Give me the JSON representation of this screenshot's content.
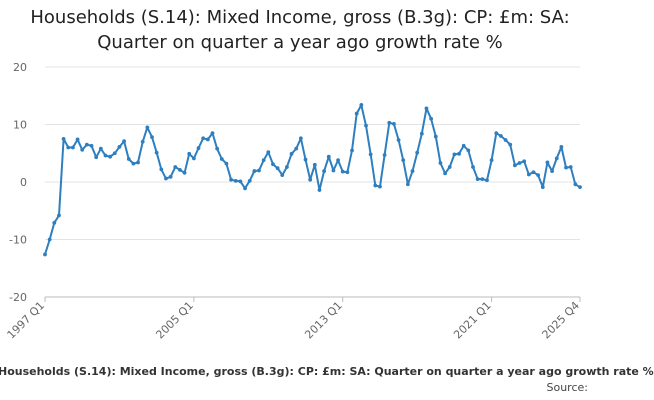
{
  "page": {
    "title_line1": "Households (S.14): Mixed Income, gross (B.3g): CP: £m: SA:",
    "title_line2": "Quarter on quarter a year ago growth rate %",
    "caption": "Households (S.14): Mixed Income, gross (B.3g): CP: £m: SA: Quarter on quarter a year ago growth rate %",
    "source_label": "Source:"
  },
  "colors": {
    "line": "#2e7fc0",
    "grid": "#e3e3e3",
    "axis": "#bbbbbb",
    "tick_text": "#666666"
  },
  "chart_data": {
    "type": "line",
    "title": "Households (S.14): Mixed Income, gross (B.3g): CP: £m: SA: Quarter on quarter a year ago growth rate %",
    "xlabel": "",
    "ylabel": "",
    "ylim": [
      -20,
      20
    ],
    "y_ticks": [
      -20,
      -10,
      0,
      10,
      20
    ],
    "x_ticks": [
      "1997 Q1",
      "2005 Q1",
      "2013 Q1",
      "2021 Q1",
      "2025 Q4"
    ],
    "grid": true,
    "legend": "none",
    "x_start": "1997 Q1",
    "x_end": "2025 Q4",
    "series": [
      {
        "values": [
          -12.6,
          -10.0,
          -7.1,
          -5.8,
          7.5,
          6.0,
          6.0,
          7.4,
          5.6,
          6.5,
          6.3,
          4.3,
          5.8,
          4.6,
          4.4,
          5.0,
          6.1,
          7.1,
          4.0,
          3.2,
          3.4,
          7.0,
          9.5,
          7.8,
          5.1,
          2.2,
          0.6,
          0.9,
          2.6,
          2.1,
          1.6,
          4.9,
          4.1,
          5.9,
          7.6,
          7.4,
          8.5,
          5.8,
          4.0,
          3.2,
          0.4,
          0.2,
          0.1,
          -1.1,
          0.2,
          1.9,
          2.0,
          3.8,
          5.2,
          3.1,
          2.4,
          1.2,
          2.6,
          4.9,
          5.8,
          7.6,
          3.9,
          0.4,
          3.0,
          -1.4,
          1.9,
          4.4,
          2.0,
          3.8,
          1.8,
          1.7,
          5.5,
          11.9,
          13.4,
          9.8,
          4.8,
          -0.6,
          -0.8,
          4.7,
          10.3,
          10.1,
          7.3,
          3.8,
          -0.4,
          1.9,
          5.1,
          8.4,
          12.8,
          11.0,
          7.9,
          3.3,
          1.5,
          2.6,
          4.8,
          4.9,
          6.3,
          5.5,
          2.6,
          0.5,
          0.5,
          0.3,
          3.8,
          8.5,
          8.0,
          7.3,
          6.5,
          2.9,
          3.3,
          3.6,
          1.3,
          1.7,
          1.2,
          -0.9,
          3.4,
          1.9,
          4.1,
          6.1,
          2.5,
          2.6,
          -0.4,
          -0.9
        ]
      }
    ]
  }
}
